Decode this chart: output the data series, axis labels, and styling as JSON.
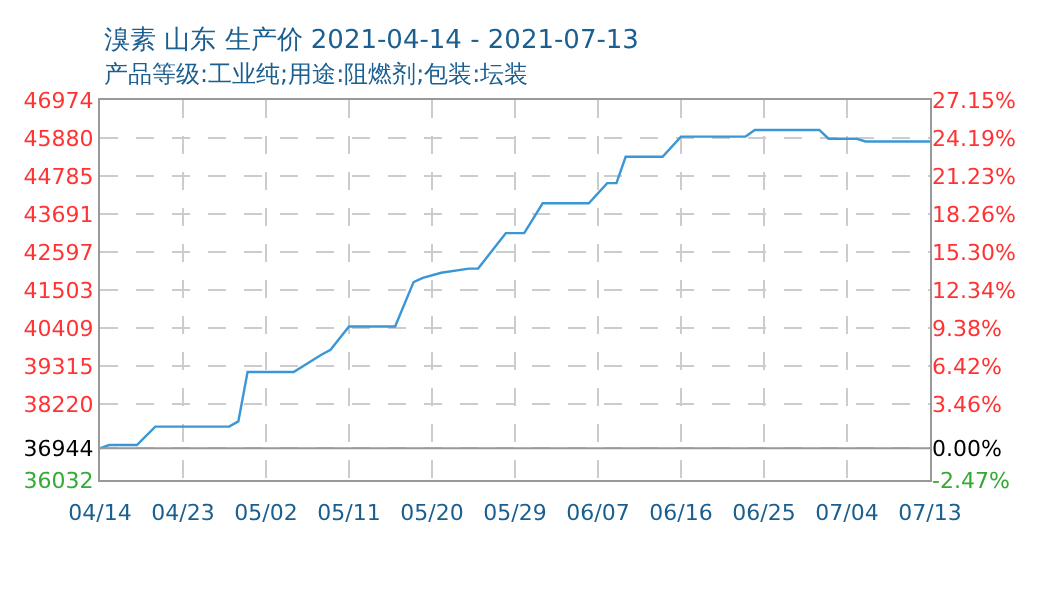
{
  "chart_data": {
    "type": "line",
    "title": "溴素 山东 生产价 2021-04-14 - 2021-07-13",
    "subtitle": "产品等级:工业纯;用途:阻燃剂;包装:坛装",
    "x": [
      "2021-04-14",
      "2021-04-15",
      "2021-04-18",
      "2021-04-20",
      "2021-04-28",
      "2021-04-29",
      "2021-04-30",
      "2021-05-05",
      "2021-05-08",
      "2021-05-09",
      "2021-05-11",
      "2021-05-16",
      "2021-05-18",
      "2021-05-19",
      "2021-05-21",
      "2021-05-24",
      "2021-05-25",
      "2021-05-28",
      "2021-05-30",
      "2021-06-01",
      "2021-06-06",
      "2021-06-08",
      "2021-06-09",
      "2021-06-10",
      "2021-06-14",
      "2021-06-16",
      "2021-06-23",
      "2021-06-24",
      "2021-07-01",
      "2021-07-02",
      "2021-07-05",
      "2021-07-06",
      "2021-07-13"
    ],
    "series": [
      {
        "color": "#3a96d6",
        "values": [
          36944,
          37040,
          37040,
          37570,
          37570,
          37720,
          39140,
          39140,
          39640,
          39780,
          40450,
          40450,
          41730,
          41850,
          42000,
          42120,
          42120,
          43140,
          43140,
          44000,
          44000,
          44580,
          44580,
          45340,
          45340,
          45920,
          45920,
          46110,
          46110,
          45860,
          45860,
          45780,
          45780
        ]
      }
    ],
    "xlim": [
      "2021-04-14",
      "2021-07-13"
    ],
    "xticks": [
      {
        "value": "2021-04-14",
        "label": "04/14"
      },
      {
        "value": "2021-04-23",
        "label": "04/23"
      },
      {
        "value": "2021-05-02",
        "label": "05/02"
      },
      {
        "value": "2021-05-11",
        "label": "05/11"
      },
      {
        "value": "2021-05-20",
        "label": "05/20"
      },
      {
        "value": "2021-05-29",
        "label": "05/29"
      },
      {
        "value": "2021-06-07",
        "label": "06/07"
      },
      {
        "value": "2021-06-16",
        "label": "06/16"
      },
      {
        "value": "2021-06-25",
        "label": "06/25"
      },
      {
        "value": "2021-07-04",
        "label": "07/04"
      },
      {
        "value": "2021-07-13",
        "label": "07/13"
      }
    ],
    "ylim": [
      36032,
      46974
    ],
    "yticks": [
      36032,
      36944,
      38220,
      39315,
      40409,
      41503,
      42597,
      43691,
      44785,
      45880,
      46974
    ],
    "y2lim": [
      -2.47,
      27.15
    ],
    "y2ticks": [
      {
        "value": -2.47,
        "label": "-2.47%"
      },
      {
        "value": 0,
        "label": "0.00%"
      },
      {
        "value": 3.46,
        "label": "3.46%"
      },
      {
        "value": 6.42,
        "label": "6.42%"
      },
      {
        "value": 9.38,
        "label": "9.38%"
      },
      {
        "value": 12.34,
        "label": "12.34%"
      },
      {
        "value": 15.3,
        "label": "15.30%"
      },
      {
        "value": 18.26,
        "label": "18.26%"
      },
      {
        "value": 21.23,
        "label": "21.23%"
      },
      {
        "value": 24.19,
        "label": "24.19%"
      },
      {
        "value": 27.15,
        "label": "27.15%"
      }
    ],
    "ref_lines": [
      {
        "axis": "y",
        "value": 36944,
        "color": "#999999",
        "line_style": "solid"
      }
    ],
    "grid": true,
    "marker": "none",
    "line_style": "solid"
  }
}
